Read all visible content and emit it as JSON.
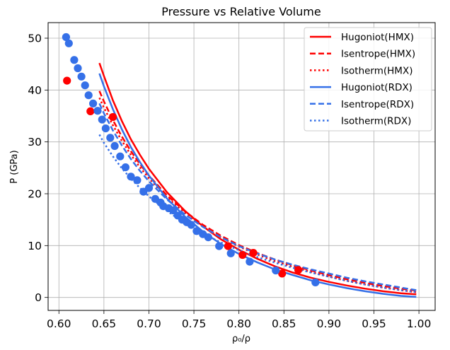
{
  "chart_data": {
    "type": "line",
    "title": "Pressure vs Relative Volume",
    "xlabel": "ρ₀/ρ",
    "ylabel": "P (GPa)",
    "xlim": [
      0.588,
      1.018
    ],
    "ylim": [
      -2.5,
      53
    ],
    "xticks": [
      "0.60",
      "0.65",
      "0.70",
      "0.75",
      "0.80",
      "0.85",
      "0.90",
      "0.95",
      "1.00"
    ],
    "yticks": [
      "0",
      "10",
      "20",
      "30",
      "40",
      "50"
    ],
    "grid": true,
    "legend_position": "top-right",
    "colors": {
      "HMX": "#ff0000",
      "RDX": "#3570e8"
    },
    "series": [
      {
        "name": "Hugoniot(HMX)",
        "kind": "curve",
        "color": "#ff0000",
        "dash": "solid",
        "x": [
          0.645,
          0.65,
          0.66,
          0.67,
          0.68,
          0.69,
          0.7,
          0.72,
          0.74,
          0.76,
          0.78,
          0.8,
          0.82,
          0.84,
          0.86,
          0.88,
          0.9,
          0.92,
          0.94,
          0.96,
          0.98,
          0.997
        ],
        "y": [
          45.2,
          42.7,
          38.0,
          34.0,
          30.5,
          27.5,
          24.8,
          20.3,
          16.7,
          13.7,
          11.2,
          9.2,
          7.5,
          6.0,
          4.8,
          3.8,
          3.0,
          2.3,
          1.7,
          1.2,
          0.8,
          0.6
        ]
      },
      {
        "name": "Isentrope(HMX)",
        "kind": "curve",
        "color": "#ff0000",
        "dash": "dashed",
        "x": [
          0.645,
          0.65,
          0.66,
          0.67,
          0.68,
          0.69,
          0.7,
          0.72,
          0.74,
          0.76,
          0.78,
          0.8,
          0.82,
          0.84,
          0.86,
          0.88,
          0.9,
          0.92,
          0.94,
          0.96,
          0.98,
          0.997
        ],
        "y": [
          39.8,
          37.8,
          34.2,
          31.0,
          28.2,
          25.7,
          23.5,
          19.7,
          16.6,
          14.0,
          11.9,
          10.1,
          8.6,
          7.3,
          6.2,
          5.2,
          4.3,
          3.5,
          2.8,
          2.2,
          1.7,
          1.3
        ]
      },
      {
        "name": "Isotherm(HMX)",
        "kind": "curve",
        "color": "#ff0000",
        "dash": "dotted",
        "x": [
          0.645,
          0.65,
          0.66,
          0.67,
          0.68,
          0.69,
          0.7,
          0.72,
          0.74,
          0.76,
          0.78,
          0.8,
          0.82,
          0.84,
          0.86,
          0.88,
          0.9,
          0.92,
          0.94,
          0.96,
          0.98,
          0.997
        ],
        "y": [
          38.5,
          36.6,
          33.2,
          30.2,
          27.5,
          25.1,
          23.0,
          19.3,
          16.3,
          13.7,
          11.6,
          9.8,
          8.3,
          7.0,
          5.9,
          4.9,
          4.0,
          3.2,
          2.5,
          1.9,
          1.4,
          1.0
        ]
      },
      {
        "name": "Hugoniot(RDX)",
        "kind": "curve",
        "color": "#3570e8",
        "dash": "solid",
        "x": [
          0.645,
          0.65,
          0.66,
          0.67,
          0.68,
          0.69,
          0.7,
          0.72,
          0.74,
          0.76,
          0.78,
          0.8,
          0.82,
          0.84,
          0.86,
          0.88,
          0.9,
          0.92,
          0.94,
          0.96,
          0.98,
          0.997
        ],
        "y": [
          43.2,
          40.7,
          36.3,
          32.4,
          29.0,
          26.1,
          23.5,
          19.1,
          15.6,
          12.7,
          10.3,
          8.4,
          6.8,
          5.4,
          4.3,
          3.3,
          2.5,
          1.8,
          1.2,
          0.7,
          0.3,
          0.1
        ]
      },
      {
        "name": "Isentrope(RDX)",
        "kind": "curve",
        "color": "#3570e8",
        "dash": "dashed",
        "x": [
          0.645,
          0.65,
          0.66,
          0.67,
          0.68,
          0.69,
          0.7,
          0.72,
          0.74,
          0.76,
          0.78,
          0.8,
          0.82,
          0.84,
          0.86,
          0.88,
          0.9,
          0.92,
          0.94,
          0.96,
          0.98,
          0.997
        ],
        "y": [
          37.4,
          35.5,
          32.2,
          29.3,
          26.7,
          24.4,
          22.4,
          18.9,
          16.0,
          13.6,
          11.6,
          9.9,
          8.5,
          7.3,
          6.3,
          5.4,
          4.6,
          3.8,
          3.1,
          2.5,
          1.9,
          1.4
        ]
      },
      {
        "name": "Isotherm(RDX)",
        "kind": "curve",
        "color": "#3570e8",
        "dash": "dotted",
        "x": [
          0.645,
          0.65,
          0.66,
          0.67,
          0.68,
          0.69,
          0.7,
          0.72,
          0.74,
          0.76,
          0.78,
          0.8,
          0.82,
          0.84,
          0.86,
          0.88,
          0.9,
          0.92,
          0.94,
          0.96,
          0.98,
          0.997
        ],
        "y": [
          31.4,
          29.8,
          27.2,
          24.9,
          22.9,
          21.1,
          19.5,
          16.7,
          14.3,
          12.3,
          10.6,
          9.1,
          7.8,
          6.7,
          5.7,
          4.8,
          4.0,
          3.2,
          2.5,
          1.9,
          1.4,
          1.0
        ]
      },
      {
        "kind": "points",
        "color": "#ff0000",
        "x": [
          0.609,
          0.635,
          0.66,
          0.788,
          0.804,
          0.816,
          0.848,
          0.866
        ],
        "y": [
          41.8,
          35.9,
          34.8,
          9.9,
          8.2,
          8.6,
          4.6,
          5.3
        ]
      },
      {
        "kind": "points",
        "color": "#3570e8",
        "x": [
          0.608,
          0.611,
          0.617,
          0.621,
          0.625,
          0.629,
          0.633,
          0.638,
          0.643,
          0.648,
          0.652,
          0.657,
          0.662,
          0.668,
          0.674,
          0.68,
          0.687,
          0.694,
          0.7,
          0.707,
          0.713,
          0.716,
          0.722,
          0.727,
          0.732,
          0.737,
          0.742,
          0.747,
          0.753,
          0.76,
          0.766,
          0.778,
          0.791,
          0.812,
          0.841,
          0.885
        ],
        "y": [
          50.2,
          49.0,
          45.8,
          44.2,
          42.6,
          40.9,
          39.0,
          37.4,
          36.0,
          34.3,
          32.6,
          30.8,
          29.2,
          27.2,
          25.1,
          23.3,
          22.6,
          20.4,
          21.1,
          19.0,
          18.3,
          17.6,
          17.2,
          16.8,
          15.8,
          15.0,
          14.5,
          14.0,
          12.8,
          12.2,
          11.6,
          9.9,
          8.5,
          6.9,
          5.2,
          2.9
        ]
      }
    ]
  }
}
